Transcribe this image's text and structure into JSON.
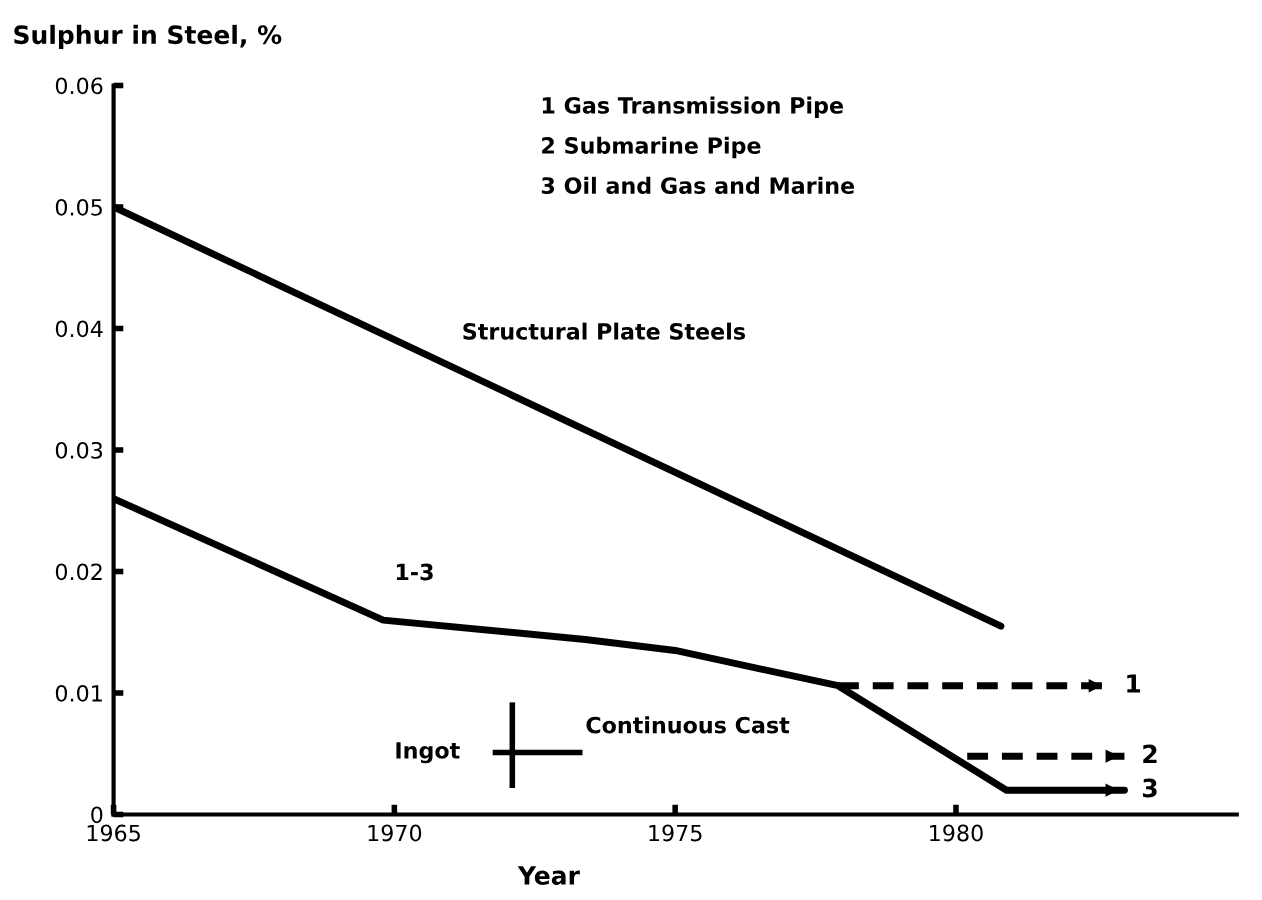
{
  "chart_data": {
    "type": "line",
    "ylabel": "Sulphur in Steel, %",
    "xlabel": "Year",
    "xlim": [
      1965,
      1985
    ],
    "xticks": [
      1965,
      1970,
      1975,
      1980
    ],
    "ylim": [
      0,
      0.06
    ],
    "yticks": [
      0,
      0.01,
      0.02,
      0.03,
      0.04,
      0.05,
      0.06
    ],
    "grid": false,
    "legend": "right",
    "marker": "none",
    "series": [
      {
        "color": "#000000",
        "line_style": "solid",
        "x": [
          1965,
          1980.8
        ],
        "values": [
          0.05,
          0.0155
        ]
      },
      {
        "name": "1",
        "color": "#000000",
        "line_style": "dashed",
        "x": [
          1977.9,
          1982.7
        ],
        "values": [
          0.0106,
          0.0106
        ]
      },
      {
        "name": "2",
        "color": "#000000",
        "line_style": "dashed",
        "x": [
          1980.2,
          1983
        ],
        "values": [
          0.0048,
          0.0048
        ]
      },
      {
        "name": "3",
        "color": "#000000",
        "line_style": "solid",
        "x": [
          1965,
          1969.8,
          1973.4,
          1975,
          1977.9,
          1980.9,
          1983
        ],
        "values": [
          0.026,
          0.016,
          0.0144,
          0.0135,
          0.0106,
          0.002,
          0.002
        ]
      }
    ],
    "annotations": [
      "1 Gas Transmission Pipe",
      "2 Submarine Pipe",
      "3 Oil and Gas and Marine",
      "Ingot",
      "Continuous Cast",
      "Structural Plate Steels",
      "1-3"
    ]
  }
}
